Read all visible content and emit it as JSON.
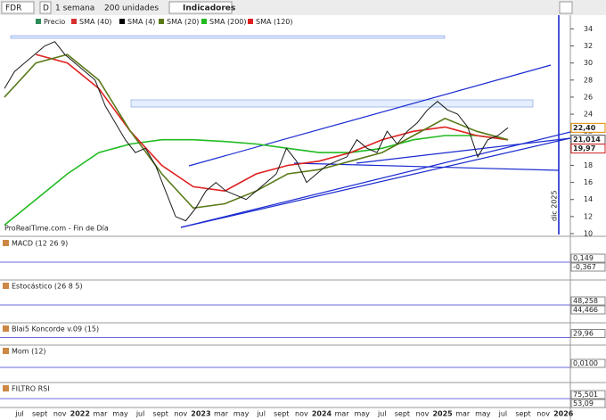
{
  "toolbar": {
    "symbol": "FDR",
    "period_code": "D",
    "period": "1 semana",
    "units": "200 unidades",
    "indicators": "Indicadores"
  },
  "chart_data": {
    "type": "line",
    "legend": [
      {
        "name": "Precio",
        "color": "#2e8b57"
      },
      {
        "name": "SMA (40)",
        "color": "#d83030"
      },
      {
        "name": "SMA (4)",
        "color": "#000000"
      },
      {
        "name": "SMA (20)",
        "color": "#5a7a1a"
      },
      {
        "name": "SMA (200)",
        "color": "#22bb22"
      },
      {
        "name": "SMA (120)",
        "color": "#e02020"
      }
    ],
    "source": "ProRealTime.com - Fin de Día",
    "ylim": [
      10,
      35.5
    ],
    "yticks": [
      10,
      12,
      14,
      16,
      18,
      20,
      22,
      24,
      26,
      28,
      30,
      32,
      34
    ],
    "price_labels": [
      {
        "value": 22.4,
        "label": "22,40",
        "color": "#e08a00"
      },
      {
        "value": 21.014,
        "label": "21,014",
        "color": "#555555"
      },
      {
        "value": 19.97,
        "label": "19,97",
        "color": "#d02020"
      }
    ],
    "series": [
      {
        "name": "Precio",
        "color": "#1a1a1a",
        "values": [
          27,
          29,
          30,
          31,
          32,
          32.5,
          31,
          30,
          29,
          28,
          25,
          23,
          21,
          19.5,
          20,
          18,
          15,
          12,
          11.5,
          13,
          15,
          16,
          15,
          14.5,
          14,
          15,
          16,
          17,
          20,
          18.5,
          16,
          17,
          18,
          18.5,
          19,
          21,
          20,
          19.5,
          22,
          20.5,
          22,
          23,
          24.5,
          25.5,
          24.5,
          24,
          22.5,
          19,
          21,
          21.5,
          22.4
        ]
      },
      {
        "name": "SMA (20)",
        "color": "#5a7a1a",
        "values": [
          26,
          30,
          31,
          28,
          22,
          17,
          13,
          13.5,
          15,
          17,
          17.5,
          18.5,
          19.5,
          21.5,
          23.5,
          22,
          21
        ]
      },
      {
        "name": "SMA (120)",
        "color": "#e02020",
        "values": [
          null,
          31,
          30,
          27,
          22,
          18,
          15.5,
          15,
          17,
          18,
          18.5,
          19.5,
          21,
          22,
          22.5,
          21.5,
          21
        ]
      },
      {
        "name": "SMA (200)",
        "color": "#22bb22",
        "values": [
          11,
          14,
          17,
          19.5,
          20.5,
          21,
          21,
          20.8,
          20.5,
          20,
          19.5,
          19.5,
          20,
          21,
          21.5,
          21.5,
          21
        ]
      }
    ],
    "x_labels": [
      "jul",
      "sept",
      "nov",
      "2022",
      "mar",
      "may",
      "jul",
      "sept",
      "nov",
      "2023",
      "mar",
      "may",
      "jul",
      "sept",
      "nov",
      "2024",
      "mar",
      "may",
      "jul",
      "sept",
      "nov",
      "2025",
      "mar",
      "may",
      "jul",
      "sept",
      "nov",
      "2026"
    ],
    "marker": "dic 2025"
  },
  "panels": [
    {
      "title": "MACD (12 26 9)",
      "labels": [
        "0,149",
        "-0,367"
      ]
    },
    {
      "title": "Estocástico (26 8 5)",
      "labels": [
        "48,258",
        "44,466"
      ]
    },
    {
      "title": "Blai5 Koncorde v.09 (15)",
      "labels": [
        "29,96"
      ]
    },
    {
      "title": "Mom (12)",
      "labels": [
        "0,0100"
      ]
    },
    {
      "title": "FILTRO RSI",
      "labels": [
        "75,501",
        "53,09"
      ]
    }
  ]
}
